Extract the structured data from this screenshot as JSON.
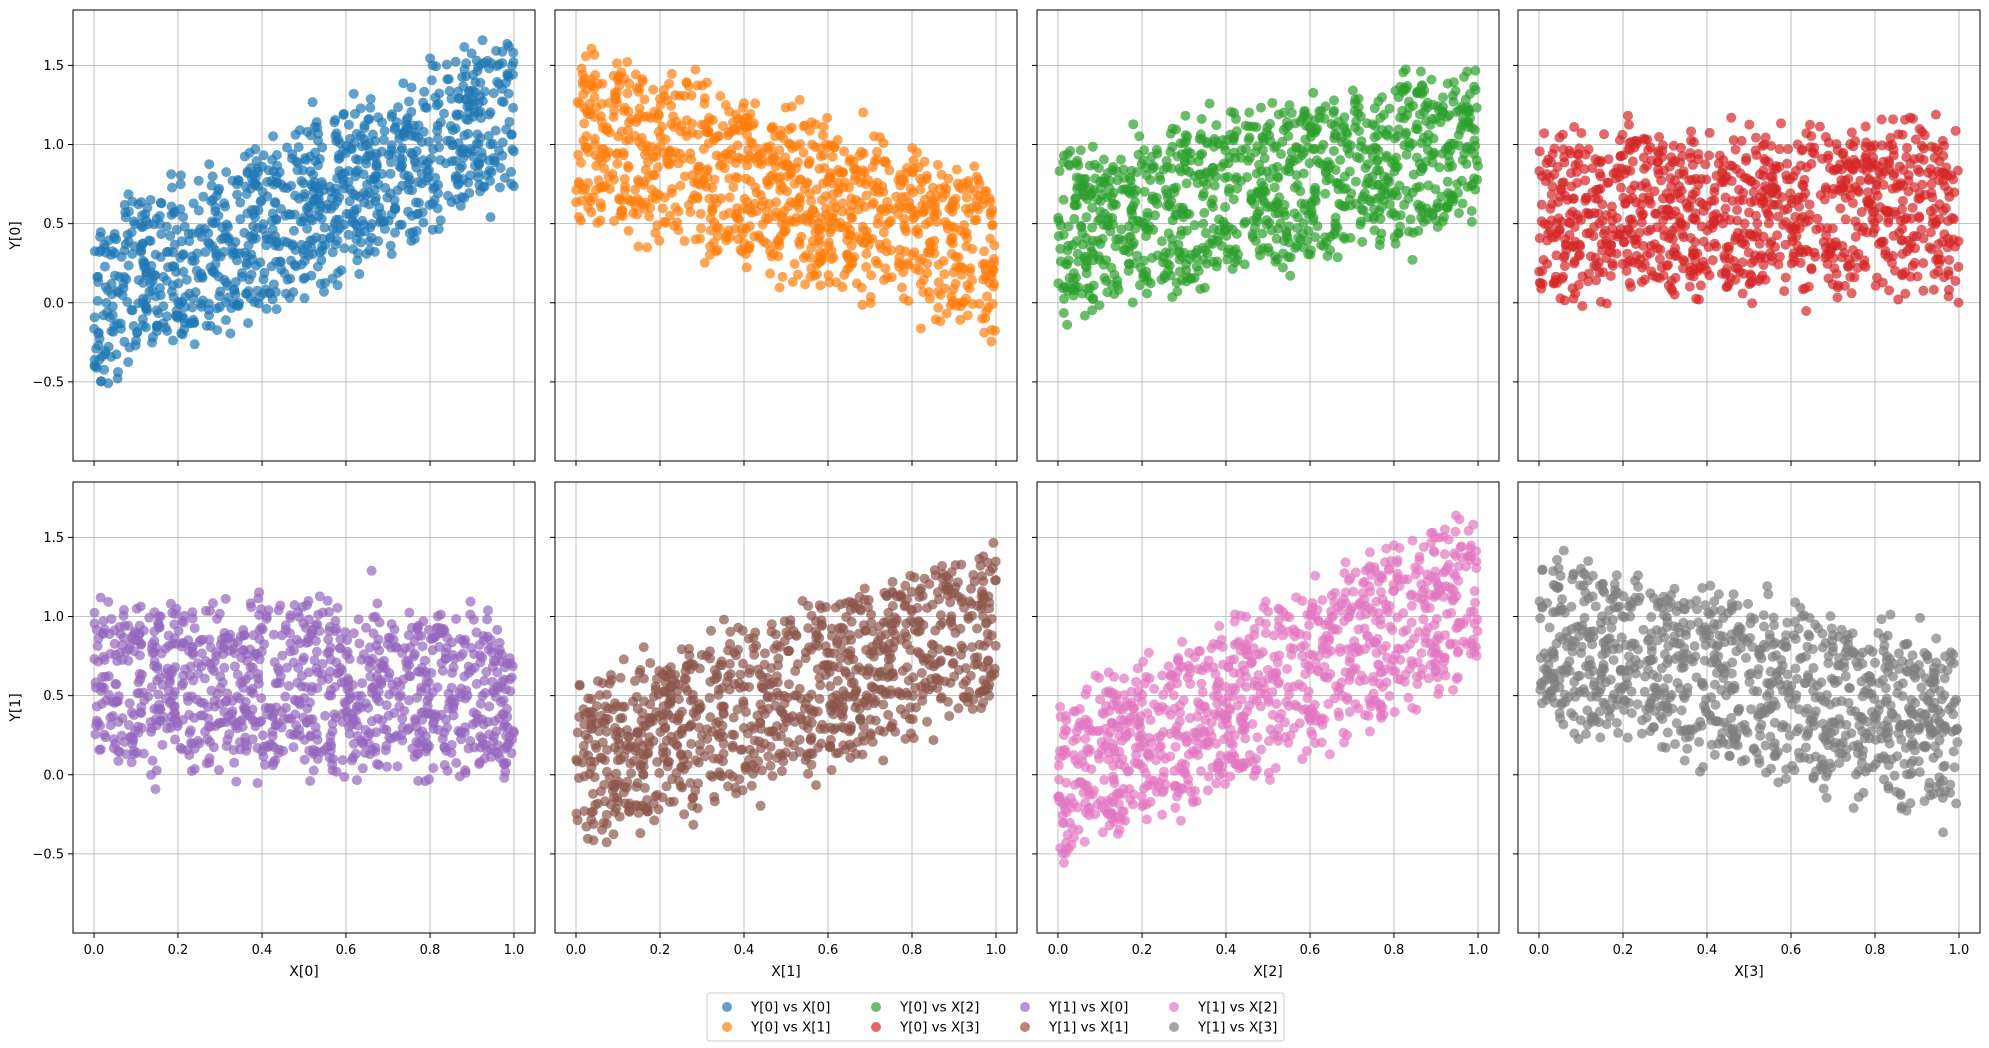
{
  "chart_data": {
    "type": "scatter",
    "layout": "grid 2 rows x 4 columns, shared axes",
    "grid": true,
    "marker_alpha": 0.7,
    "xlim": [
      -0.05,
      1.05
    ],
    "ylim": [
      -1.0,
      1.85
    ],
    "x_ticks": [
      0.0,
      0.2,
      0.4,
      0.6,
      0.8,
      1.0
    ],
    "x_tick_labels": [
      "0.0",
      "0.2",
      "0.4",
      "0.6",
      "0.8",
      "1.0"
    ],
    "y_ticks": [
      -0.5,
      0.0,
      0.5,
      1.0,
      1.5
    ],
    "y_tick_labels": [
      "−0.5",
      "0.0",
      "0.5",
      "1.0",
      "1.5"
    ],
    "row_ylabels": [
      "Y[0]",
      "Y[1]"
    ],
    "col_xlabels": [
      "X[0]",
      "X[1]",
      "X[2]",
      "X[3]"
    ],
    "legend": {
      "placement": "lower center",
      "ncol": 4
    },
    "series": [
      {
        "name": "Y[0] vs X[0]",
        "row": 0,
        "col": 0,
        "color": "#1f77b4",
        "trend": {
          "intercept": 0.0,
          "slope": 1.2
        },
        "spread": 0.5,
        "points": 1000
      },
      {
        "name": "Y[0] vs X[1]",
        "row": 0,
        "col": 1,
        "color": "#ff7f0e",
        "trend": {
          "intercept": 1.1,
          "slope": -0.8
        },
        "spread": 0.5,
        "points": 1000
      },
      {
        "name": "Y[0] vs X[2]",
        "row": 0,
        "col": 2,
        "color": "#2ca02c",
        "trend": {
          "intercept": 0.4,
          "slope": 0.6
        },
        "spread": 0.5,
        "points": 1000
      },
      {
        "name": "Y[0] vs X[3]",
        "row": 0,
        "col": 3,
        "color": "#d62728",
        "trend": {
          "intercept": 0.55,
          "slope": 0.05
        },
        "spread": 0.5,
        "points": 1000
      },
      {
        "name": "Y[1] vs X[0]",
        "row": 1,
        "col": 0,
        "color": "#9467bd",
        "trend": {
          "intercept": 0.6,
          "slope": -0.1
        },
        "spread": 0.5,
        "points": 1000
      },
      {
        "name": "Y[1] vs X[1]",
        "row": 1,
        "col": 1,
        "color": "#8c564b",
        "trend": {
          "intercept": 0.05,
          "slope": 0.9
        },
        "spread": 0.5,
        "points": 1000
      },
      {
        "name": "Y[1] vs X[2]",
        "row": 1,
        "col": 2,
        "color": "#e377c2",
        "trend": {
          "intercept": -0.05,
          "slope": 1.2
        },
        "spread": 0.5,
        "points": 1000
      },
      {
        "name": "Y[1] vs X[3]",
        "row": 1,
        "col": 3,
        "color": "#7f7f7f",
        "trend": {
          "intercept": 0.85,
          "slope": -0.55
        },
        "spread": 0.5,
        "points": 1000
      }
    ]
  }
}
